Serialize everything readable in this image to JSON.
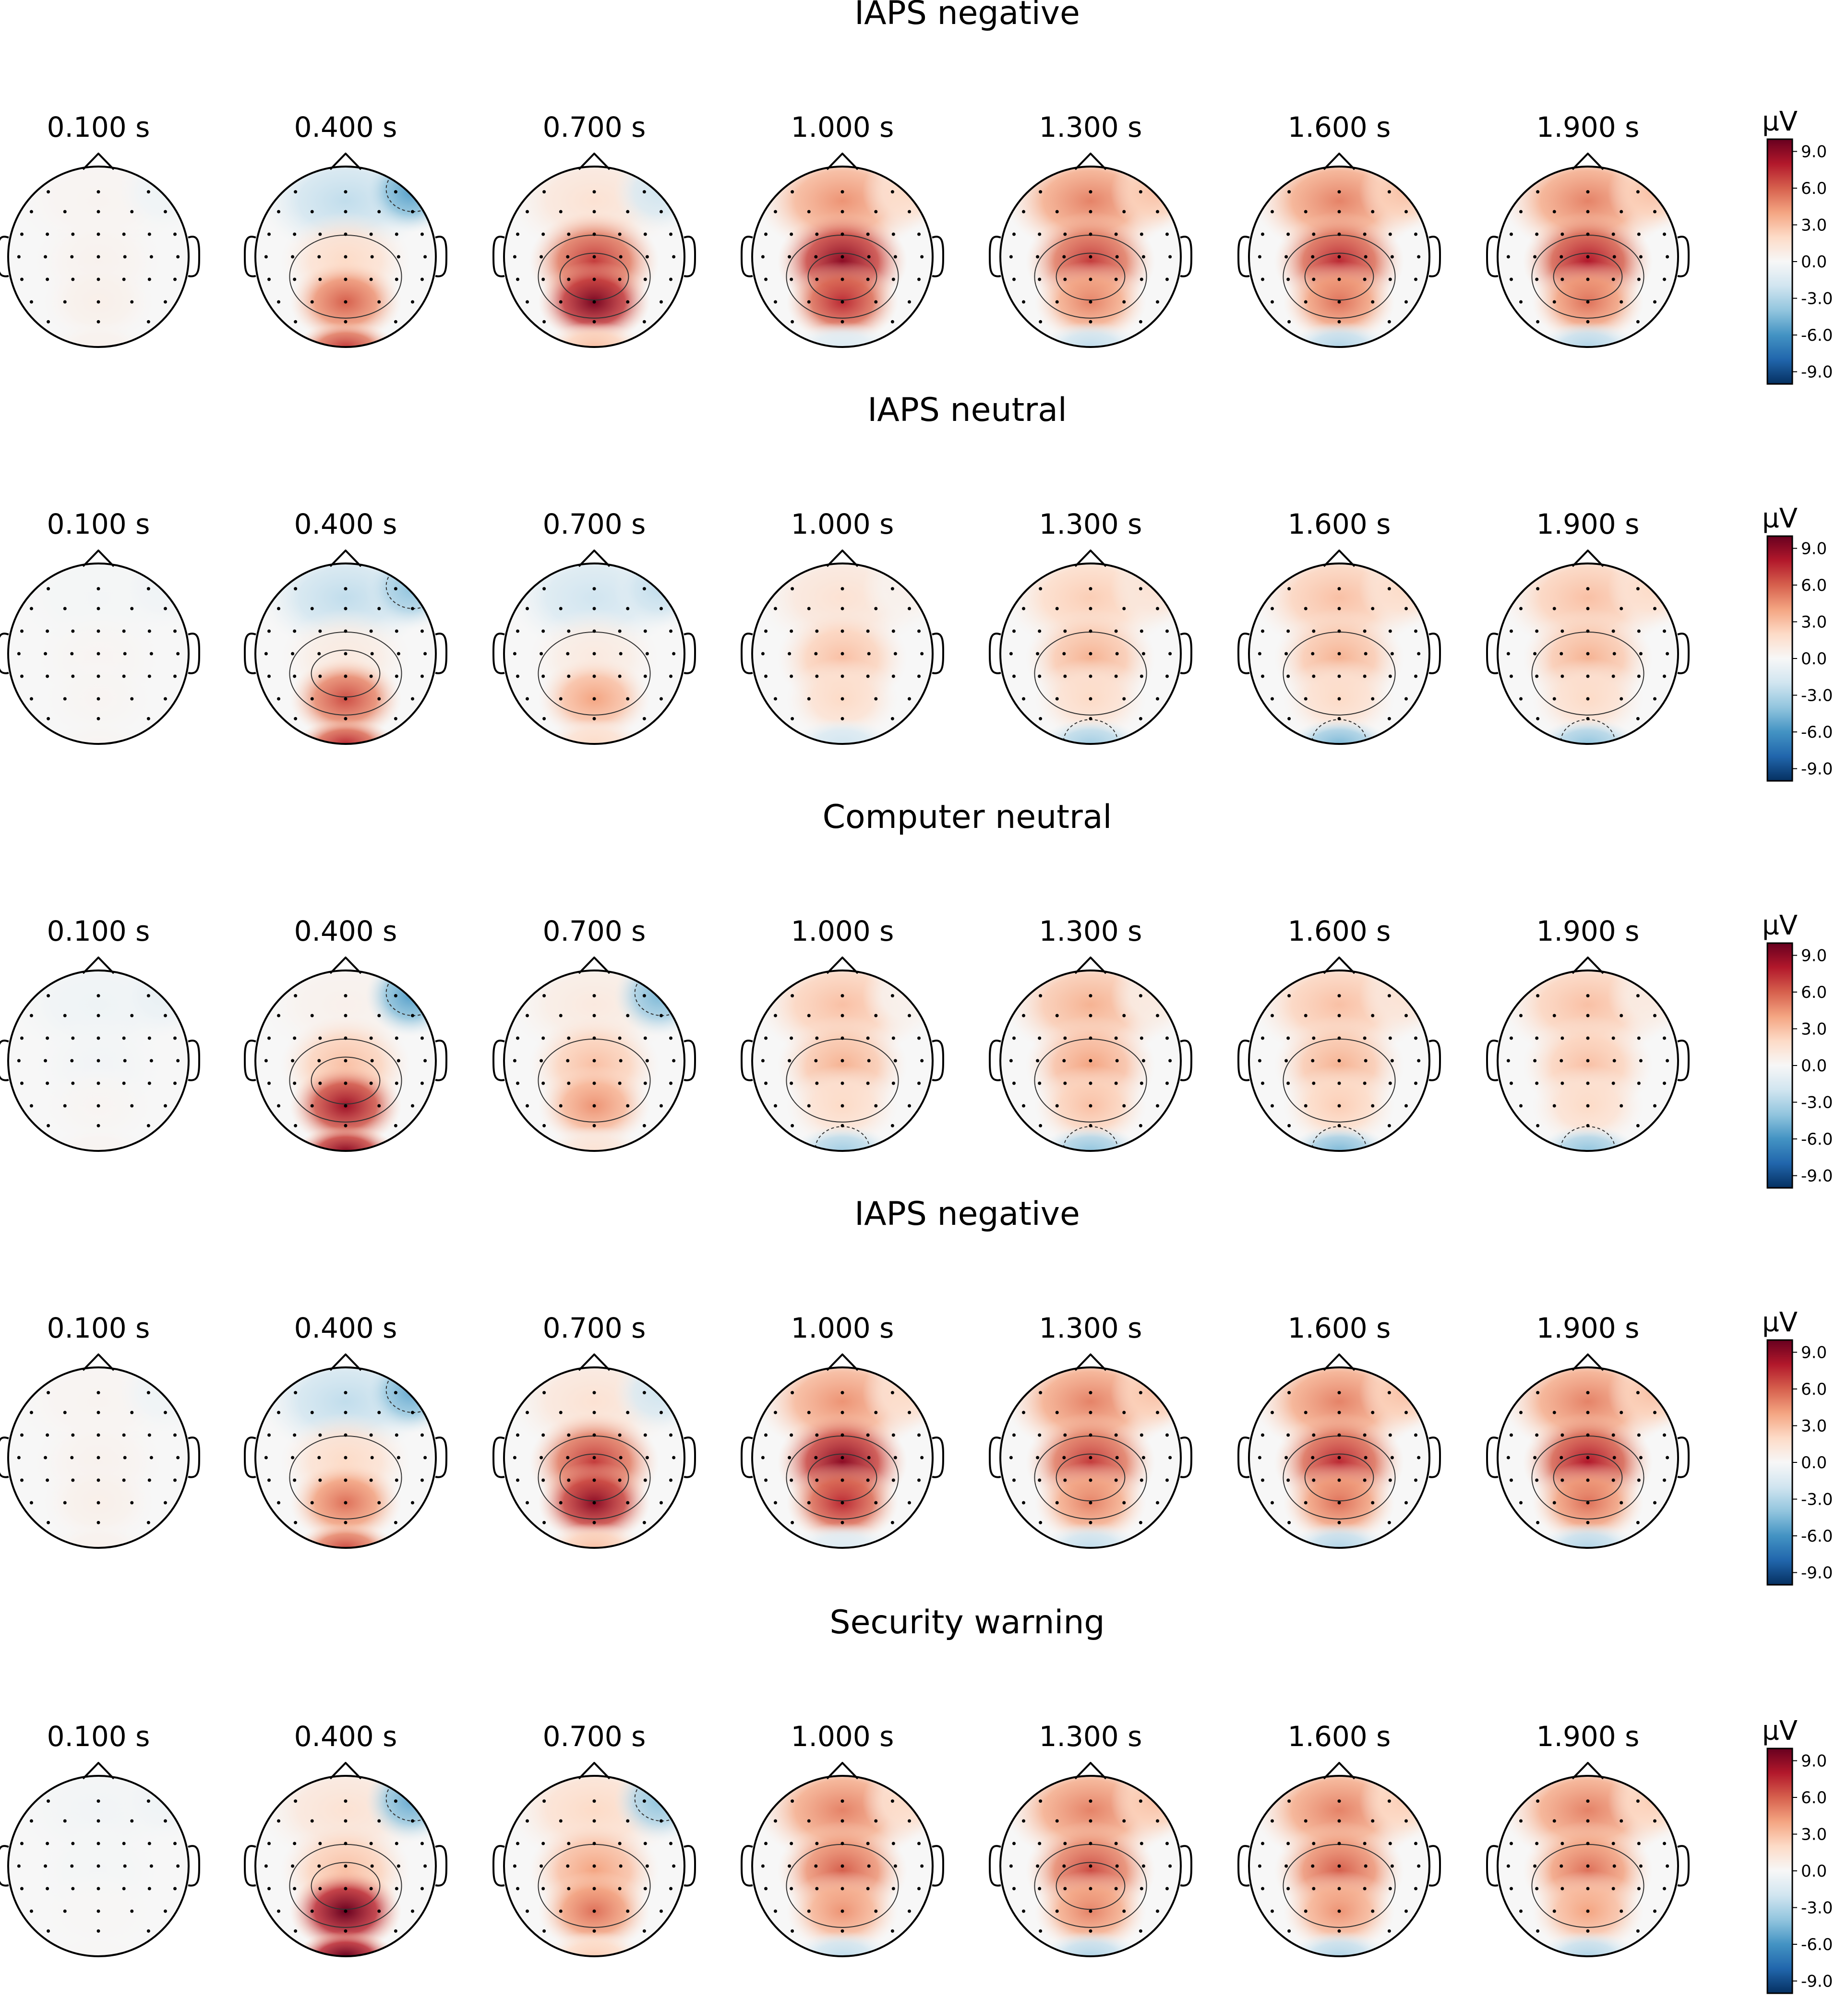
{
  "figure": {
    "colors": {
      "scale": [
        "#053061",
        "#2166ac",
        "#4393c3",
        "#92c5de",
        "#d1e5f0",
        "#f7f7f7",
        "#fddbc7",
        "#f4a582",
        "#d6604d",
        "#b2182b",
        "#67001f"
      ],
      "outline": "#000000",
      "electrode": "#000000",
      "contour": "#333333"
    }
  },
  "chart_data": {
    "type": "topomap",
    "unit": "µV",
    "vlim": [
      -10,
      10
    ],
    "colorbar_ticks": [
      "9.0",
      "6.0",
      "3.0",
      "0.0",
      "-3.0",
      "-6.0",
      "-9.0"
    ],
    "times": [
      "0.100 s",
      "0.400 s",
      "0.700 s",
      "1.000 s",
      "1.300 s",
      "1.600 s",
      "1.900 s"
    ],
    "rows": [
      {
        "condition": "IAPS negative",
        "maps": [
          {
            "posterior": 0.6,
            "central": 0.4,
            "frontal": 0.3,
            "right_frontal": -0.5,
            "occipital": 0.5
          },
          {
            "posterior": 6.0,
            "central": 2.0,
            "frontal": -2.5,
            "right_frontal": -5.5,
            "occipital": 7.0
          },
          {
            "posterior": 9.5,
            "central": 7.0,
            "frontal": 1.5,
            "right_frontal": -2.0,
            "occipital": 3.0
          },
          {
            "posterior": 7.5,
            "central": 9.0,
            "frontal": 4.5,
            "right_frontal": 2.0,
            "occipital": -1.5
          },
          {
            "posterior": 5.0,
            "central": 7.0,
            "frontal": 5.0,
            "right_frontal": 3.0,
            "occipital": -2.5
          },
          {
            "posterior": 5.5,
            "central": 7.5,
            "frontal": 5.0,
            "right_frontal": 3.0,
            "occipital": -3.0
          },
          {
            "posterior": 5.5,
            "central": 8.0,
            "frontal": 5.0,
            "right_frontal": 3.0,
            "occipital": -3.0
          }
        ]
      },
      {
        "condition": "IAPS neutral",
        "maps": [
          {
            "posterior": 0.2,
            "central": 0.2,
            "frontal": -0.2,
            "right_frontal": -0.4,
            "occipital": 0.2
          },
          {
            "posterior": 6.5,
            "central": 1.0,
            "frontal": -2.5,
            "right_frontal": -4.0,
            "occipital": 7.5
          },
          {
            "posterior": 4.0,
            "central": 1.0,
            "frontal": -2.0,
            "right_frontal": -2.5,
            "occipital": 2.0
          },
          {
            "posterior": 2.0,
            "central": 3.0,
            "frontal": 1.5,
            "right_frontal": 0.5,
            "occipital": -2.0
          },
          {
            "posterior": 2.0,
            "central": 3.5,
            "frontal": 2.5,
            "right_frontal": 1.5,
            "occipital": -3.5
          },
          {
            "posterior": 2.0,
            "central": 3.5,
            "frontal": 3.0,
            "right_frontal": 2.0,
            "occipital": -4.5
          },
          {
            "posterior": 2.0,
            "central": 3.5,
            "frontal": 3.0,
            "right_frontal": 2.0,
            "occipital": -4.0
          }
        ]
      },
      {
        "condition": "Computer neutral",
        "maps": [
          {
            "posterior": 0.2,
            "central": -0.3,
            "frontal": -0.5,
            "right_frontal": -0.8,
            "occipital": 0.3
          },
          {
            "posterior": 8.5,
            "central": 3.0,
            "frontal": 0.5,
            "right_frontal": -5.5,
            "occipital": 9.0
          },
          {
            "posterior": 4.5,
            "central": 3.0,
            "frontal": 1.0,
            "right_frontal": -4.5,
            "occipital": 1.5
          },
          {
            "posterior": 2.0,
            "central": 3.5,
            "frontal": 3.0,
            "right_frontal": 0.5,
            "occipital": -3.5
          },
          {
            "posterior": 3.0,
            "central": 4.0,
            "frontal": 3.5,
            "right_frontal": 1.0,
            "occipital": -4.0
          },
          {
            "posterior": 2.5,
            "central": 3.5,
            "frontal": 3.0,
            "right_frontal": 1.5,
            "occipital": -4.5
          },
          {
            "posterior": 2.0,
            "central": 3.0,
            "frontal": 3.0,
            "right_frontal": 1.0,
            "occipital": -4.0
          }
        ]
      },
      {
        "condition": "IAPS negative",
        "maps": [
          {
            "posterior": 0.6,
            "central": 0.4,
            "frontal": 0.3,
            "right_frontal": -0.5,
            "occipital": 0.5
          },
          {
            "posterior": 5.5,
            "central": 2.0,
            "frontal": -2.5,
            "right_frontal": -5.0,
            "occipital": 6.5
          },
          {
            "posterior": 9.0,
            "central": 7.0,
            "frontal": 1.5,
            "right_frontal": -2.0,
            "occipital": 3.0
          },
          {
            "posterior": 7.5,
            "central": 9.0,
            "frontal": 4.5,
            "right_frontal": 2.0,
            "occipital": -1.5
          },
          {
            "posterior": 5.0,
            "central": 7.0,
            "frontal": 5.0,
            "right_frontal": 3.0,
            "occipital": -2.5
          },
          {
            "posterior": 5.5,
            "central": 7.5,
            "frontal": 5.0,
            "right_frontal": 3.0,
            "occipital": -3.0
          },
          {
            "posterior": 5.5,
            "central": 8.0,
            "frontal": 5.0,
            "right_frontal": 3.0,
            "occipital": -3.0
          }
        ]
      },
      {
        "condition": "Security warning",
        "maps": [
          {
            "posterior": 0.1,
            "central": -0.2,
            "frontal": -0.3,
            "right_frontal": -0.4,
            "occipital": 0.1
          },
          {
            "posterior": 10.0,
            "central": 3.0,
            "frontal": 1.5,
            "right_frontal": -5.0,
            "occipital": 10.0
          },
          {
            "posterior": 5.5,
            "central": 4.0,
            "frontal": 2.0,
            "right_frontal": -4.0,
            "occipital": 2.5
          },
          {
            "posterior": 4.5,
            "central": 6.0,
            "frontal": 5.0,
            "right_frontal": 2.0,
            "occipital": -2.5
          },
          {
            "posterior": 5.0,
            "central": 6.5,
            "frontal": 5.0,
            "right_frontal": 3.0,
            "occipital": -3.0
          },
          {
            "posterior": 4.5,
            "central": 6.0,
            "frontal": 5.0,
            "right_frontal": 2.5,
            "occipital": -3.0
          },
          {
            "posterior": 4.0,
            "central": 5.5,
            "frontal": 5.0,
            "right_frontal": 2.5,
            "occipital": -3.0
          }
        ]
      }
    ]
  }
}
